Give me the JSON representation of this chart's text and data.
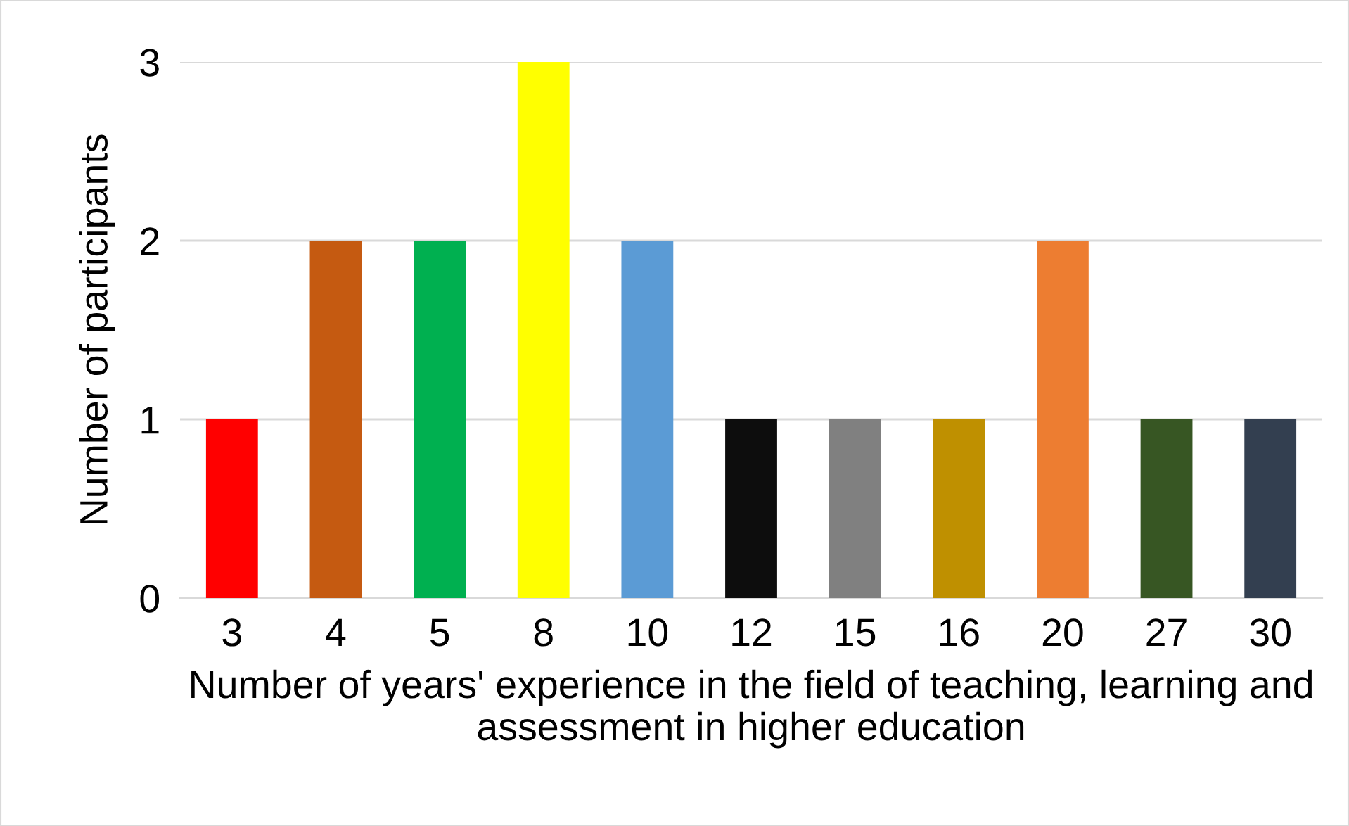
{
  "chart_data": {
    "type": "bar",
    "xlabel": "Number of years' experience in the field of teaching, learning and assessment in higher education",
    "ylabel": "Number of participants",
    "categories": [
      "3",
      "4",
      "5",
      "8",
      "10",
      "12",
      "15",
      "16",
      "20",
      "27",
      "30"
    ],
    "values": [
      1,
      2,
      2,
      3,
      2,
      1,
      1,
      1,
      2,
      1,
      1
    ],
    "colors": [
      "#ff0000",
      "#c55a11",
      "#00b050",
      "#ffff00",
      "#5b9bd5",
      "#0d0d0d",
      "#808080",
      "#bf9000",
      "#ed7d31",
      "#375623",
      "#333f50"
    ],
    "ylim": [
      0,
      3
    ],
    "yticks": [
      0,
      1,
      2,
      3
    ],
    "grid": "y",
    "legend": false
  }
}
